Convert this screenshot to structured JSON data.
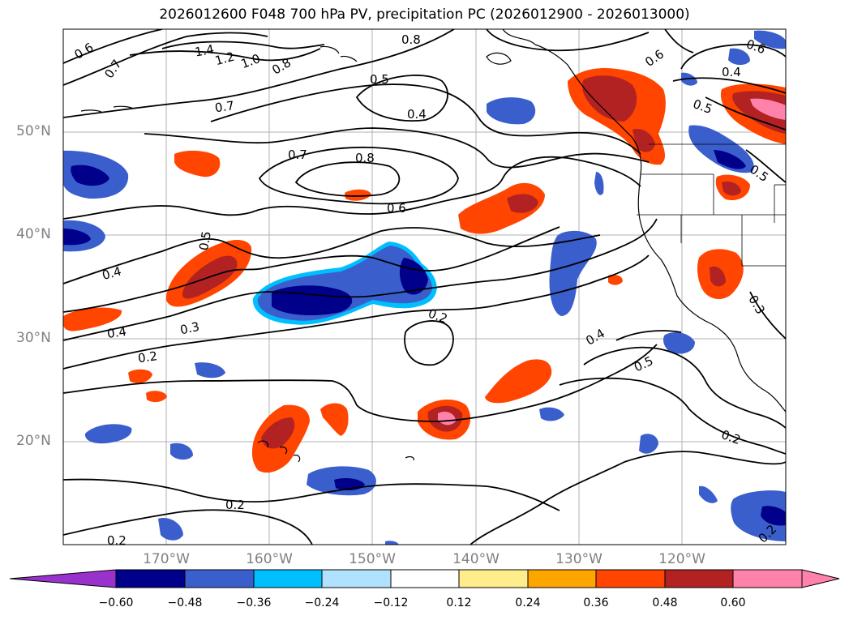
{
  "title": "2026012600 F048 700 hPa PV, precipitation PC (2026012900 - 2026013000)",
  "lat_labels": [
    "50°N",
    "40°N",
    "30°N",
    "20°N"
  ],
  "lon_labels": [
    "170°W",
    "160°W",
    "150°W",
    "140°W",
    "130°W",
    "120°W"
  ],
  "contour_labels": [
    "0.6",
    "0.7",
    "1.4",
    "1.2",
    "1.0",
    "0.8",
    "0.7",
    "0.8",
    "0.5",
    "0.4",
    "0.6",
    "0.6",
    "0.4",
    "0.5",
    "0.5",
    "0.7",
    "0.8",
    "0.6",
    "0.5",
    "0.4",
    "0.4",
    "0.3",
    "0.2",
    "0.2",
    "0.4",
    "0.5",
    "0.3",
    "0.2",
    "0.2",
    "0.2",
    "0.2"
  ],
  "colorbar": {
    "ticks": [
      "−0.60",
      "−0.48",
      "−0.36",
      "−0.24",
      "−0.12",
      "0.12",
      "0.24",
      "0.36",
      "0.48",
      "0.60"
    ],
    "colors": [
      "#9932cc",
      "#00008b",
      "#3a5fcd",
      "#00bfff",
      "#b0e2ff",
      "#ffffff",
      "#ffec8b",
      "#ffa500",
      "#ff4500",
      "#b22222",
      "#ff82ab"
    ]
  }
}
